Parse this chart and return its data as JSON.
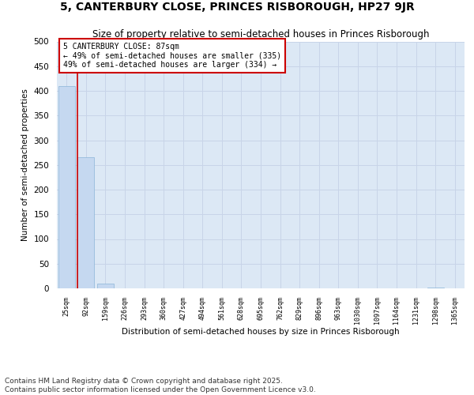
{
  "title": "5, CANTERBURY CLOSE, PRINCES RISBOROUGH, HP27 9JR",
  "subtitle": "Size of property relative to semi-detached houses in Princes Risborough",
  "xlabel": "Distribution of semi-detached houses by size in Princes Risborough",
  "ylabel": "Number of semi-detached properties",
  "footnote": "Contains HM Land Registry data © Crown copyright and database right 2025.\nContains public sector information licensed under the Open Government Licence v3.0.",
  "bin_labels": [
    "25sqm",
    "92sqm",
    "159sqm",
    "226sqm",
    "293sqm",
    "360sqm",
    "427sqm",
    "494sqm",
    "561sqm",
    "628sqm",
    "695sqm",
    "762sqm",
    "829sqm",
    "896sqm",
    "963sqm",
    "1030sqm",
    "1097sqm",
    "1164sqm",
    "1231sqm",
    "1298sqm",
    "1365sqm"
  ],
  "bar_heights": [
    410,
    265,
    10,
    0,
    0,
    0,
    0,
    0,
    0,
    0,
    0,
    0,
    0,
    0,
    0,
    0,
    0,
    0,
    0,
    2,
    0
  ],
  "bar_color": "#c5d8f0",
  "bar_edge_color": "#8ab4d8",
  "property_bin_index": 1,
  "vline_color": "#cc0000",
  "annotation_text": "5 CANTERBURY CLOSE: 87sqm\n← 49% of semi-detached houses are smaller (335)\n49% of semi-detached houses are larger (334) →",
  "annotation_box_color": "#cc0000",
  "ylim": [
    0,
    500
  ],
  "yticks": [
    0,
    50,
    100,
    150,
    200,
    250,
    300,
    350,
    400,
    450,
    500
  ],
  "grid_color": "#c8d4e8",
  "bg_color": "#dce8f5",
  "title_fontsize": 10,
  "subtitle_fontsize": 8.5,
  "footnote_fontsize": 6.5
}
